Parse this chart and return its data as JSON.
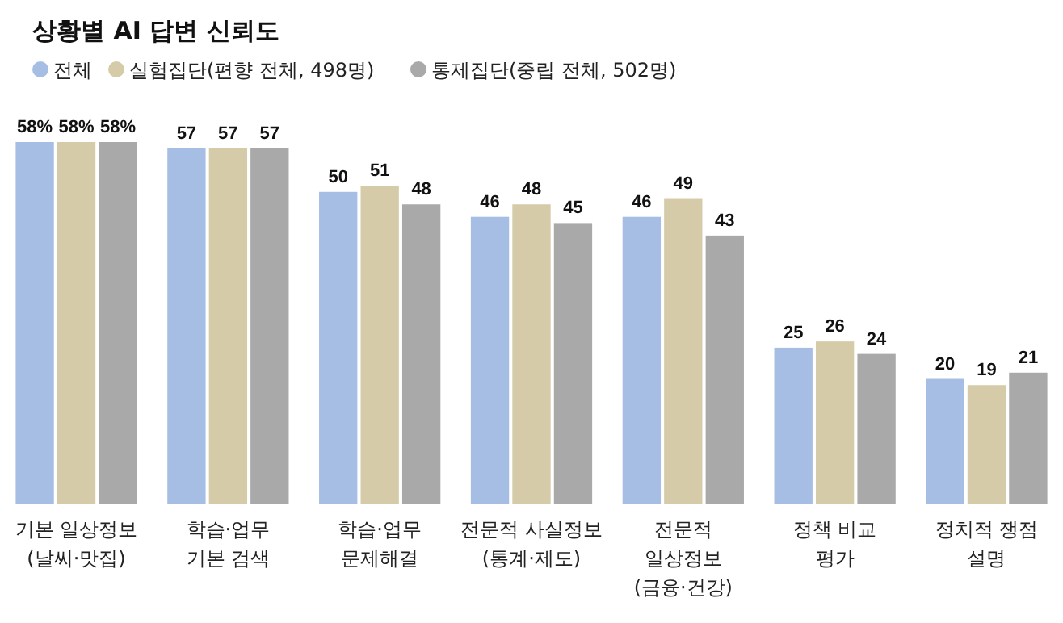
{
  "chart_data": {
    "type": "bar",
    "title": "상황별 AI 답변 신뢰도",
    "categories": [
      "기본 일상정보\n(날씨·맛집)",
      "학습·업무\n기본 검색",
      "학습·업무\n문제해결",
      "전문적 사실정보\n(통계·제도)",
      "전문적\n일상정보\n(금융·건강)",
      "정책 비교\n평가",
      "정치적 쟁점\n설명"
    ],
    "series": [
      {
        "name": "전체",
        "color": "#a6bee3",
        "values": [
          58,
          57,
          50,
          46,
          46,
          25,
          20
        ],
        "value_labels": [
          "58%",
          "57",
          "50",
          "46",
          "46",
          "25",
          "20"
        ]
      },
      {
        "name": "실험집단(편향 전체, 498명)",
        "color": "#d5cba9",
        "values": [
          58,
          57,
          51,
          48,
          49,
          26,
          19
        ],
        "value_labels": [
          "58%",
          "57",
          "51",
          "48",
          "49",
          "26",
          "19"
        ]
      },
      {
        "name": "통제집단(중립 전체, 502명)",
        "color": "#a9a9a9",
        "values": [
          58,
          57,
          48,
          45,
          43,
          24,
          21
        ],
        "value_labels": [
          "58%",
          "57",
          "48",
          "45",
          "43",
          "24",
          "21"
        ]
      }
    ],
    "legend": "top left",
    "tick_labels": "x"
  }
}
